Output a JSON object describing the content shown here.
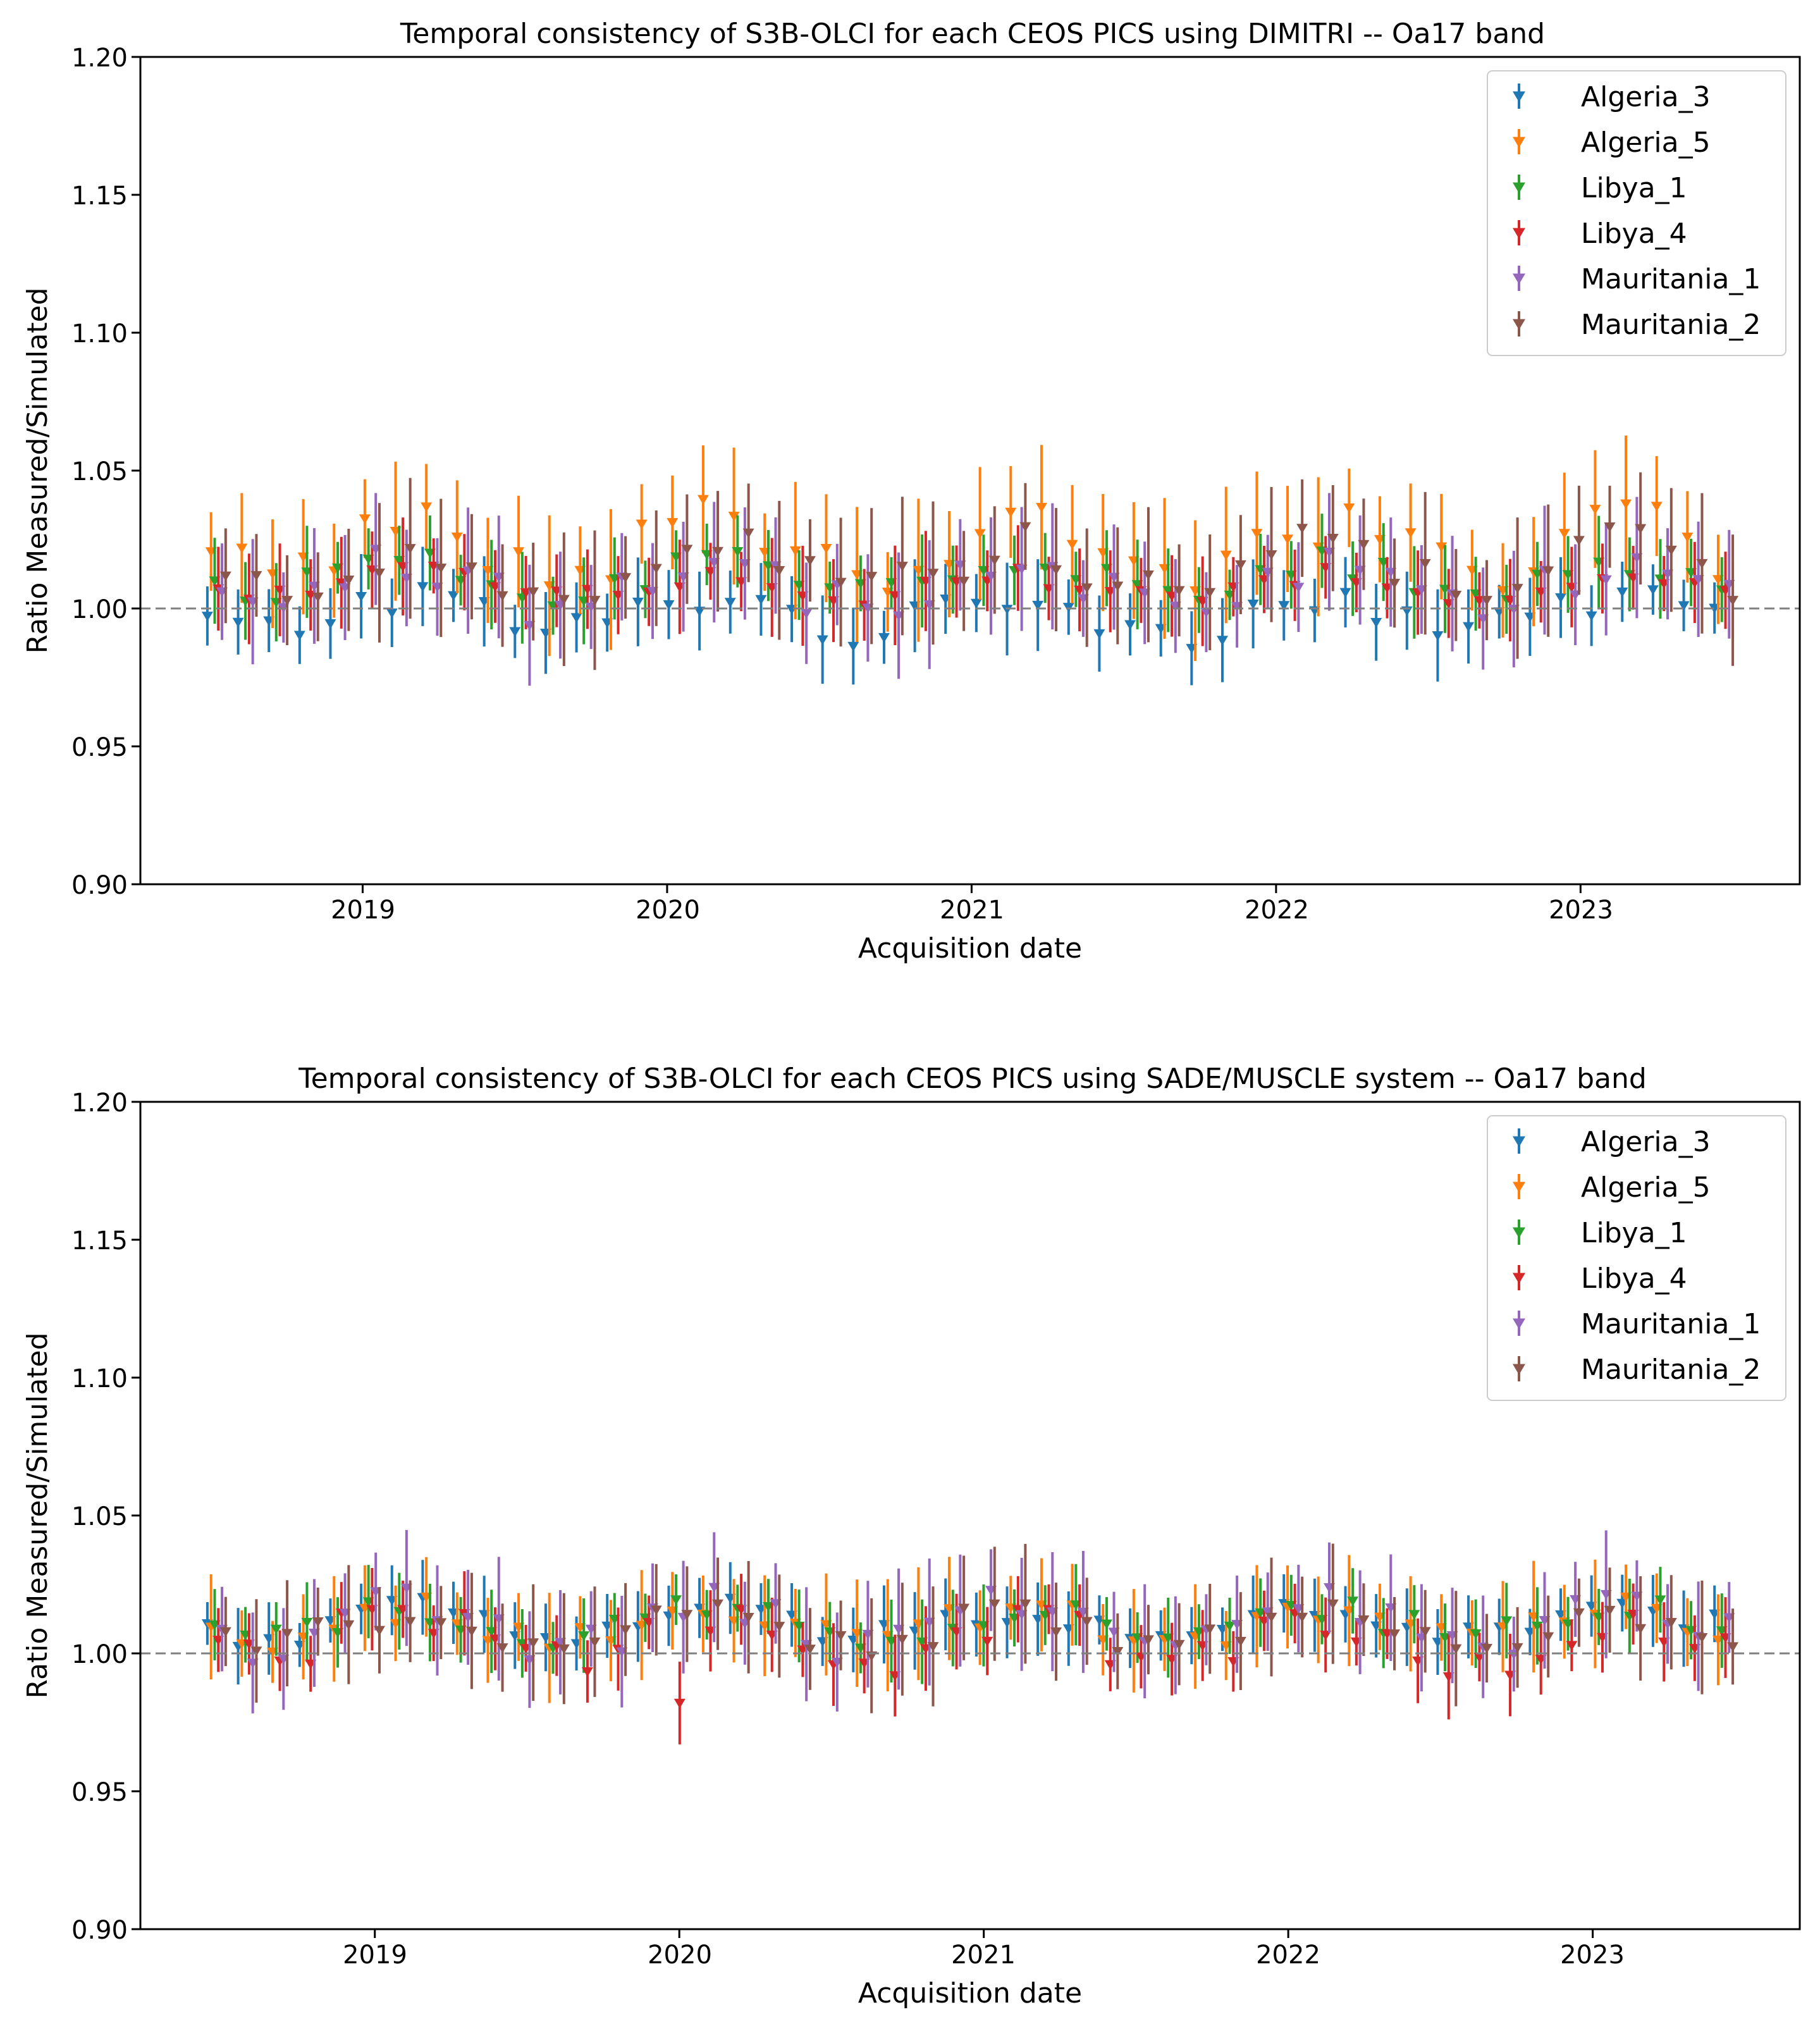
{
  "series_colors": {
    "Algeria_3": "#1f77b4",
    "Algeria_5": "#ff7f0e",
    "Libya_1": "#2ca02c",
    "Libya_4": "#d62728",
    "Mauritania_1": "#9467bd",
    "Mauritania_2": "#8c564b"
  },
  "reference_line": {
    "value": 1.0,
    "style": "dashed",
    "color": "#808080"
  },
  "chart_data": [
    {
      "type": "scatter",
      "title": "Temporal consistency of S3B-OLCI for each CEOS PICS using DIMITRI -- Oa17 band",
      "xlabel": "Acquisition date",
      "ylabel": "Ratio Measured/Simulated",
      "ylim": [
        0.9,
        1.2
      ],
      "yticks": [
        "0.90",
        "0.95",
        "1.00",
        "1.05",
        "1.10",
        "1.15",
        "1.20"
      ],
      "xlim": [
        2018.27,
        2023.72
      ],
      "xticks": [
        "2019",
        "2020",
        "2021",
        "2022",
        "2023"
      ],
      "grid": false,
      "legend_position": "top-right",
      "marker": "triangle-down with vertical error bars",
      "approx_point_count_per_series": 50,
      "date_range": [
        "2018-07",
        "2023-06"
      ],
      "series": [
        {
          "name": "Algeria_3",
          "typical_value": 0.998,
          "range": [
            0.985,
            1.012
          ],
          "typical_error": 0.013
        },
        {
          "name": "Algeria_5",
          "typical_value": 1.022,
          "range": [
            1.006,
            1.043
          ],
          "typical_error": 0.02
        },
        {
          "name": "Libya_1",
          "typical_value": 1.011,
          "range": [
            1.001,
            1.022
          ],
          "typical_error": 0.013
        },
        {
          "name": "Libya_4",
          "typical_value": 1.008,
          "range": [
            1.0,
            1.016
          ],
          "typical_error": 0.014
        },
        {
          "name": "Mauritania_1",
          "typical_value": 1.008,
          "range": [
            0.991,
            1.023
          ],
          "typical_error": 0.018
        },
        {
          "name": "Mauritania_2",
          "typical_value": 1.014,
          "range": [
            1.003,
            1.036
          ],
          "typical_error": 0.02
        }
      ]
    },
    {
      "type": "scatter",
      "title": "Temporal consistency of S3B-OLCI for each CEOS PICS using SADE/MUSCLE system -- Oa17 band",
      "xlabel": "Acquisition date",
      "ylabel": "Ratio Measured/Simulated",
      "ylim": [
        0.9,
        1.2
      ],
      "yticks": [
        "0.90",
        "0.95",
        "1.00",
        "1.05",
        "1.10",
        "1.15",
        "1.20"
      ],
      "xlim": [
        2018.27,
        2023.72
      ],
      "xticks": [
        "2019",
        "2020",
        "2021",
        "2022",
        "2023"
      ],
      "grid": false,
      "legend_position": "top-right",
      "marker": "triangle-down with vertical error bars",
      "approx_point_count_per_series": 50,
      "date_range": [
        "2018-07",
        "2023-06"
      ],
      "notable_points": [
        {
          "series": "Libya_4",
          "x": 2020.02,
          "y": 0.982
        }
      ],
      "series": [
        {
          "name": "Algeria_3",
          "typical_value": 1.011,
          "range": [
            1.002,
            1.023
          ],
          "typical_error": 0.011
        },
        {
          "name": "Algeria_5",
          "typical_value": 1.01,
          "range": [
            1.0,
            1.022
          ],
          "typical_error": 0.016
        },
        {
          "name": "Libya_1",
          "typical_value": 1.011,
          "range": [
            1.002,
            1.025
          ],
          "typical_error": 0.012
        },
        {
          "name": "Libya_4",
          "typical_value": 1.006,
          "range": [
            0.982,
            1.016
          ],
          "typical_error": 0.012
        },
        {
          "name": "Mauritania_1",
          "typical_value": 1.01,
          "range": [
            0.995,
            1.024
          ],
          "typical_error": 0.018
        },
        {
          "name": "Mauritania_2",
          "typical_value": 1.009,
          "range": [
            0.995,
            1.018
          ],
          "typical_error": 0.017
        }
      ]
    }
  ]
}
